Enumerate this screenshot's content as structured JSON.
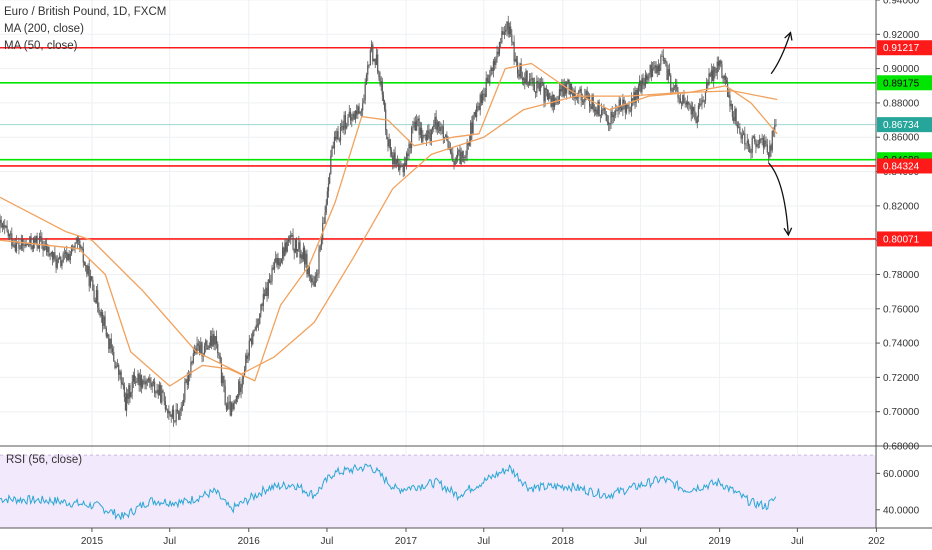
{
  "legend": {
    "title": "Euro / British Pound, 1D, FXCM",
    "ma200": "MA (200, close)",
    "ma50": "MA (50, close)"
  },
  "rsi_legend": "RSI (56, close)",
  "colors": {
    "candle": "#5a5a5a",
    "ma200": "#f2a15c",
    "ma50": "#f2a15c",
    "support": "#00e600",
    "resistance": "#ff1a1a",
    "last_price": "#26a69a",
    "rsi_line": "#2aa7d3",
    "rsi_band": "#f3e9fd"
  },
  "chart_data": {
    "type": "candlestick",
    "price_axis": {
      "ylim": [
        0.68,
        0.94
      ],
      "ticks": [
        "0.68000",
        "0.70000",
        "0.72000",
        "0.74000",
        "0.76000",
        "0.78000",
        "0.80000",
        "0.82000",
        "0.84000",
        "0.86000",
        "0.88000",
        "0.90000",
        "0.92000",
        "0.94000"
      ]
    },
    "time_axis": {
      "xlim": [
        "2014-06-01",
        "2019-12-31"
      ],
      "ticks": [
        {
          "date": "2015-01-01",
          "label": "2015"
        },
        {
          "date": "2015-07-01",
          "label": "Jul"
        },
        {
          "date": "2016-01-01",
          "label": "2016"
        },
        {
          "date": "2016-07-01",
          "label": "Jul"
        },
        {
          "date": "2017-01-01",
          "label": "2017"
        },
        {
          "date": "2017-07-01",
          "label": "Jul"
        },
        {
          "date": "2018-01-01",
          "label": "2018"
        },
        {
          "date": "2018-07-01",
          "label": "Jul"
        },
        {
          "date": "2019-01-01",
          "label": "2019"
        },
        {
          "date": "2019-07-01",
          "label": "Jul"
        },
        {
          "date": "2020-01-01",
          "label": "202"
        }
      ]
    },
    "price_path": [
      [
        "2014-06-01",
        0.808
      ],
      [
        "2014-07-15",
        0.796
      ],
      [
        "2014-09-01",
        0.799
      ],
      [
        "2014-10-15",
        0.786
      ],
      [
        "2014-12-01",
        0.797
      ],
      [
        "2014-12-20",
        0.782
      ],
      [
        "2015-01-20",
        0.76
      ],
      [
        "2015-02-15",
        0.735
      ],
      [
        "2015-03-10",
        0.718
      ],
      [
        "2015-03-20",
        0.705
      ],
      [
        "2015-04-10",
        0.72
      ],
      [
        "2015-05-10",
        0.718
      ],
      [
        "2015-06-10",
        0.71
      ],
      [
        "2015-07-10",
        0.696
      ],
      [
        "2015-07-25",
        0.7
      ],
      [
        "2015-08-25",
        0.735
      ],
      [
        "2015-09-20",
        0.737
      ],
      [
        "2015-10-15",
        0.742
      ],
      [
        "2015-11-10",
        0.703
      ],
      [
        "2015-11-25",
        0.7
      ],
      [
        "2016-01-05",
        0.74
      ],
      [
        "2016-02-01",
        0.762
      ],
      [
        "2016-03-01",
        0.785
      ],
      [
        "2016-04-05",
        0.8
      ],
      [
        "2016-05-10",
        0.79
      ],
      [
        "2016-06-01",
        0.77
      ],
      [
        "2016-06-24",
        0.81
      ],
      [
        "2016-07-10",
        0.85
      ],
      [
        "2016-08-10",
        0.87
      ],
      [
        "2016-08-25",
        0.87
      ],
      [
        "2016-09-25",
        0.88
      ],
      [
        "2016-10-10",
        0.912
      ],
      [
        "2016-10-30",
        0.9
      ],
      [
        "2016-11-20",
        0.858
      ],
      [
        "2016-12-15",
        0.838
      ],
      [
        "2017-01-05",
        0.85
      ],
      [
        "2017-01-20",
        0.87
      ],
      [
        "2017-02-15",
        0.858
      ],
      [
        "2017-03-15",
        0.87
      ],
      [
        "2017-04-20",
        0.845
      ],
      [
        "2017-05-15",
        0.85
      ],
      [
        "2017-06-20",
        0.88
      ],
      [
        "2017-07-15",
        0.895
      ],
      [
        "2017-08-15",
        0.92
      ],
      [
        "2017-08-30",
        0.925
      ],
      [
        "2017-09-15",
        0.9
      ],
      [
        "2017-10-10",
        0.895
      ],
      [
        "2017-11-10",
        0.888
      ],
      [
        "2017-12-10",
        0.88
      ],
      [
        "2018-01-10",
        0.89
      ],
      [
        "2018-02-10",
        0.885
      ],
      [
        "2018-03-10",
        0.88
      ],
      [
        "2018-04-15",
        0.87
      ],
      [
        "2018-05-15",
        0.878
      ],
      [
        "2018-06-10",
        0.88
      ],
      [
        "2018-07-15",
        0.895
      ],
      [
        "2018-08-20",
        0.905
      ],
      [
        "2018-09-15",
        0.888
      ],
      [
        "2018-10-10",
        0.88
      ],
      [
        "2018-11-10",
        0.872
      ],
      [
        "2018-12-10",
        0.895
      ],
      [
        "2019-01-01",
        0.905
      ],
      [
        "2019-01-25",
        0.88
      ],
      [
        "2019-02-20",
        0.862
      ],
      [
        "2019-03-15",
        0.855
      ],
      [
        "2019-04-10",
        0.858
      ],
      [
        "2019-04-25",
        0.852
      ],
      [
        "2019-05-15",
        0.868
      ]
    ],
    "ma200_path": [
      [
        "2014-06-01",
        0.825
      ],
      [
        "2014-11-01",
        0.805
      ],
      [
        "2015-01-01",
        0.8
      ],
      [
        "2015-05-01",
        0.77
      ],
      [
        "2015-09-01",
        0.735
      ],
      [
        "2015-12-15",
        0.722
      ],
      [
        "2016-03-01",
        0.732
      ],
      [
        "2016-06-01",
        0.752
      ],
      [
        "2016-09-01",
        0.79
      ],
      [
        "2016-12-01",
        0.83
      ],
      [
        "2017-03-01",
        0.85
      ],
      [
        "2017-07-01",
        0.86
      ],
      [
        "2017-10-01",
        0.876
      ],
      [
        "2018-02-01",
        0.884
      ],
      [
        "2018-06-01",
        0.884
      ],
      [
        "2018-10-01",
        0.886
      ],
      [
        "2019-02-01",
        0.887
      ],
      [
        "2019-05-15",
        0.882
      ]
    ],
    "ma50_path": [
      [
        "2014-06-01",
        0.8
      ],
      [
        "2014-12-01",
        0.795
      ],
      [
        "2015-02-01",
        0.78
      ],
      [
        "2015-04-01",
        0.735
      ],
      [
        "2015-07-01",
        0.715
      ],
      [
        "2015-09-15",
        0.727
      ],
      [
        "2015-11-15",
        0.725
      ],
      [
        "2016-01-15",
        0.718
      ],
      [
        "2016-03-15",
        0.762
      ],
      [
        "2016-05-20",
        0.785
      ],
      [
        "2016-07-20",
        0.822
      ],
      [
        "2016-09-20",
        0.872
      ],
      [
        "2016-11-20",
        0.87
      ],
      [
        "2017-01-20",
        0.855
      ],
      [
        "2017-04-20",
        0.86
      ],
      [
        "2017-06-20",
        0.862
      ],
      [
        "2017-08-20",
        0.9
      ],
      [
        "2017-10-20",
        0.903
      ],
      [
        "2018-01-20",
        0.887
      ],
      [
        "2018-04-20",
        0.876
      ],
      [
        "2018-07-20",
        0.884
      ],
      [
        "2018-10-20",
        0.886
      ],
      [
        "2019-01-15",
        0.89
      ],
      [
        "2019-03-15",
        0.88
      ],
      [
        "2019-05-15",
        0.862
      ]
    ],
    "horizontal_levels": [
      {
        "value": 0.91217,
        "label": "0.91217",
        "kind": "resistance"
      },
      {
        "value": 0.89175,
        "label": "0.89175",
        "kind": "support"
      },
      {
        "value": 0.86734,
        "label": "0.86734",
        "kind": "last"
      },
      {
        "value": 0.84688,
        "label": "0.84688",
        "kind": "support"
      },
      {
        "value": 0.84324,
        "label": "0.84324",
        "kind": "resistance"
      },
      {
        "value": 0.80071,
        "label": "0.80071",
        "kind": "resistance"
      }
    ],
    "annotations": [
      {
        "type": "arrow-up",
        "from": [
          "2019-05-01",
          0.897
        ],
        "via": [
          "2019-05-25",
          0.905
        ],
        "to": [
          "2019-06-15",
          0.921
        ]
      },
      {
        "type": "arrow-down",
        "from": [
          "2019-04-25",
          0.845
        ],
        "via": [
          "2019-06-01",
          0.835
        ],
        "to": [
          "2019-06-10",
          0.803
        ]
      }
    ],
    "rsi": {
      "ylim": [
        30,
        75
      ],
      "ticks": [
        "60.0000",
        "40.0000"
      ],
      "band": [
        30,
        70
      ],
      "path": [
        [
          "2014-06-01",
          46
        ],
        [
          "2014-10-01",
          45
        ],
        [
          "2015-01-15",
          42
        ],
        [
          "2015-03-15",
          36
        ],
        [
          "2015-05-15",
          45
        ],
        [
          "2015-08-01",
          44
        ],
        [
          "2015-10-15",
          50
        ],
        [
          "2015-11-20",
          40
        ],
        [
          "2016-02-15",
          52
        ],
        [
          "2016-04-15",
          54
        ],
        [
          "2016-06-01",
          48
        ],
        [
          "2016-07-15",
          60
        ],
        [
          "2016-10-10",
          64
        ],
        [
          "2016-12-10",
          51
        ],
        [
          "2017-03-15",
          55
        ],
        [
          "2017-05-01",
          48
        ],
        [
          "2017-08-30",
          63
        ],
        [
          "2017-10-15",
          52
        ],
        [
          "2018-01-15",
          53
        ],
        [
          "2018-04-15",
          48
        ],
        [
          "2018-08-20",
          57
        ],
        [
          "2018-10-15",
          51
        ],
        [
          "2019-01-01",
          55
        ],
        [
          "2019-03-15",
          44
        ],
        [
          "2019-04-20",
          42
        ],
        [
          "2019-05-15",
          47
        ]
      ]
    }
  }
}
